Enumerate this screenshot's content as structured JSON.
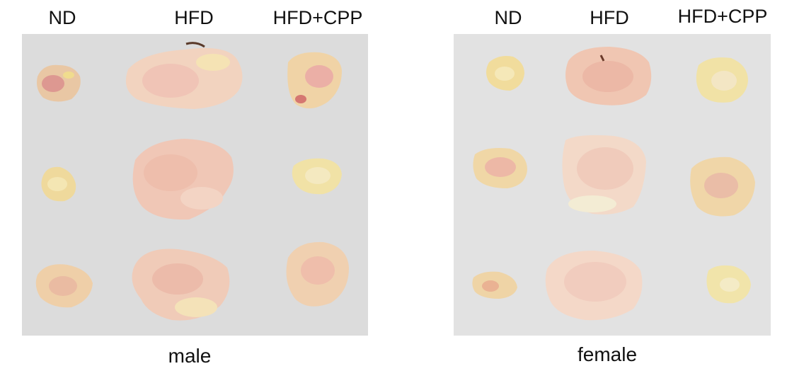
{
  "figure": {
    "panels": [
      {
        "id": "male",
        "caption": "male",
        "groups": [
          "ND",
          "HFD",
          "HFD+CPP"
        ],
        "background_color": "#dcdcdc"
      },
      {
        "id": "female",
        "caption": "female",
        "groups": [
          "ND",
          "HFD",
          "HFD+CPP"
        ],
        "background_color": "#e2e2e2"
      }
    ],
    "tissue_colors": {
      "pale_yellow": "#f1e2a6",
      "pink": "#efc2b3",
      "light_pink": "#f2d5c8",
      "red_spot": "#c9505b"
    }
  }
}
